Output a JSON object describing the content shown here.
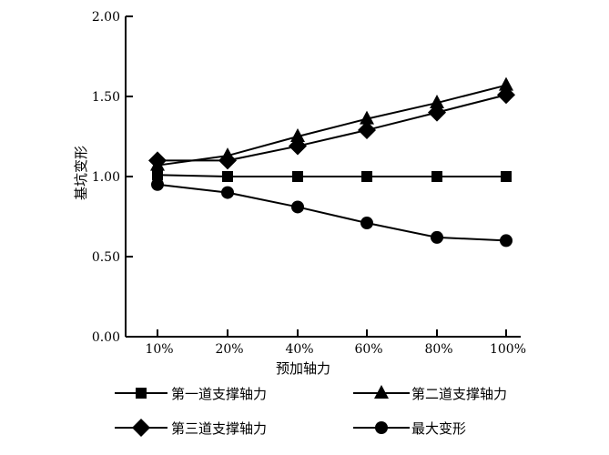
{
  "chart_data": {
    "type": "line",
    "title": "",
    "xlabel": "预加轴力",
    "ylabel": "基坑变形",
    "categories": [
      "10%",
      "20%",
      "40%",
      "60%",
      "80%",
      "100%"
    ],
    "ylim": [
      0.0,
      2.0
    ],
    "yticks": [
      "0.00",
      "0.50",
      "1.00",
      "1.50",
      "2.00"
    ],
    "ytick_values": [
      0.0,
      0.5,
      1.0,
      1.5,
      2.0
    ],
    "grid": false,
    "legend_position": "bottom",
    "series": [
      {
        "name": "第一道支撑轴力",
        "marker": "square",
        "values": [
          1.01,
          1.0,
          1.0,
          1.0,
          1.0,
          1.0
        ]
      },
      {
        "name": "第二道支撑轴力",
        "marker": "triangle",
        "values": [
          1.07,
          1.13,
          1.25,
          1.36,
          1.46,
          1.57
        ]
      },
      {
        "name": "第三道支撑轴力",
        "marker": "diamond",
        "values": [
          1.1,
          1.1,
          1.19,
          1.29,
          1.4,
          1.51
        ]
      },
      {
        "name": "最大变形",
        "marker": "circle",
        "values": [
          0.95,
          0.9,
          0.81,
          0.71,
          0.62,
          0.6
        ]
      }
    ]
  }
}
